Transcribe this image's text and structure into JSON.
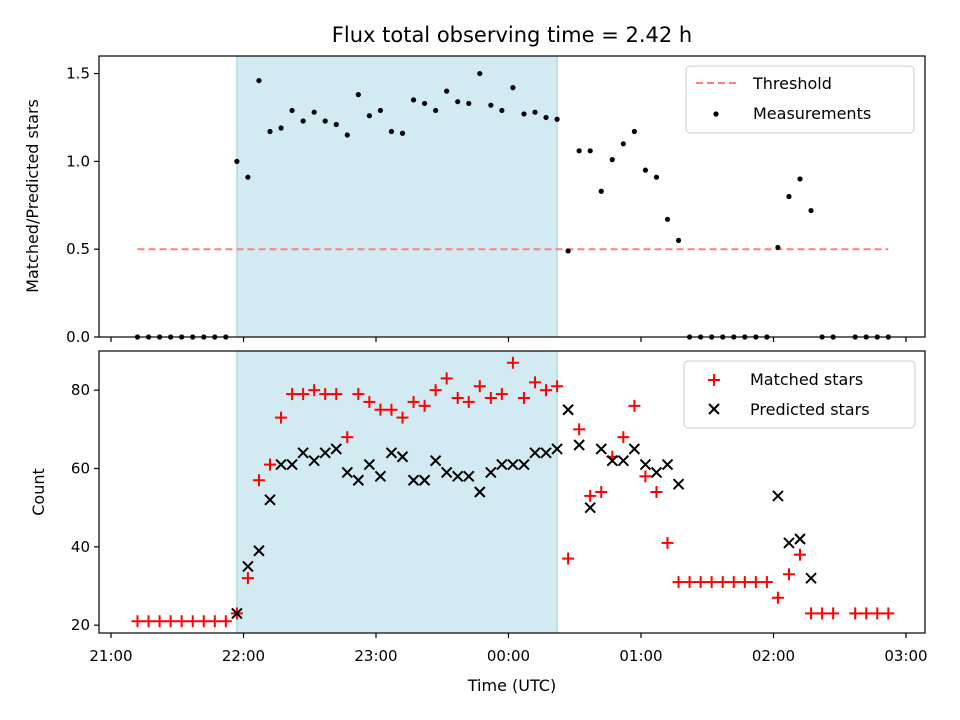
{
  "chart_data": [
    {
      "type": "scatter",
      "title": "Flux total observing time = 2.42 h",
      "xlabel": "",
      "ylabel": "Matched/Predicted stars",
      "xlim": [
        "21:00",
        "03:00"
      ],
      "ylim": [
        0,
        1.6
      ],
      "yticks": [
        "0.0",
        "0.5",
        "1.0",
        "1.5"
      ],
      "highlight_span": [
        "21:57",
        "00:22"
      ],
      "legend_position": "upper right",
      "legend": [
        "Threshold",
        "Measurements"
      ],
      "threshold": {
        "name": "Threshold",
        "value": 0.5,
        "x_range": [
          "21:12",
          "02:52"
        ],
        "color": "#ff7f7f"
      },
      "series": [
        {
          "name": "Measurements",
          "color": "#000000",
          "points": [
            [
              "21:12",
              0
            ],
            [
              "21:17",
              0
            ],
            [
              "21:22",
              0
            ],
            [
              "21:27",
              0
            ],
            [
              "21:32",
              0
            ],
            [
              "21:37",
              0
            ],
            [
              "21:42",
              0
            ],
            [
              "21:47",
              0
            ],
            [
              "21:52",
              0
            ],
            [
              "21:57",
              1.0
            ],
            [
              "22:02",
              0.91
            ],
            [
              "22:07",
              1.46
            ],
            [
              "22:12",
              1.17
            ],
            [
              "22:17",
              1.19
            ],
            [
              "22:22",
              1.29
            ],
            [
              "22:27",
              1.23
            ],
            [
              "22:32",
              1.28
            ],
            [
              "22:37",
              1.23
            ],
            [
              "22:42",
              1.21
            ],
            [
              "22:47",
              1.15
            ],
            [
              "22:52",
              1.38
            ],
            [
              "22:57",
              1.26
            ],
            [
              "23:02",
              1.29
            ],
            [
              "23:07",
              1.17
            ],
            [
              "23:12",
              1.16
            ],
            [
              "23:17",
              1.35
            ],
            [
              "23:22",
              1.33
            ],
            [
              "23:27",
              1.29
            ],
            [
              "23:32",
              1.4
            ],
            [
              "23:37",
              1.34
            ],
            [
              "23:42",
              1.33
            ],
            [
              "23:47",
              1.5
            ],
            [
              "23:52",
              1.32
            ],
            [
              "23:57",
              1.29
            ],
            [
              "00:02",
              1.42
            ],
            [
              "00:07",
              1.27
            ],
            [
              "00:12",
              1.28
            ],
            [
              "00:17",
              1.25
            ],
            [
              "00:22",
              1.24
            ],
            [
              "00:27",
              0.49
            ],
            [
              "00:32",
              1.06
            ],
            [
              "00:37",
              1.06
            ],
            [
              "00:42",
              0.83
            ],
            [
              "00:47",
              1.01
            ],
            [
              "00:52",
              1.1
            ],
            [
              "00:57",
              1.17
            ],
            [
              "01:02",
              0.95
            ],
            [
              "01:07",
              0.91
            ],
            [
              "01:12",
              0.67
            ],
            [
              "01:17",
              0.55
            ],
            [
              "01:22",
              0
            ],
            [
              "01:27",
              0
            ],
            [
              "01:32",
              0
            ],
            [
              "01:37",
              0
            ],
            [
              "01:42",
              0
            ],
            [
              "01:47",
              0
            ],
            [
              "01:52",
              0
            ],
            [
              "01:57",
              0
            ],
            [
              "02:02",
              0.51
            ],
            [
              "02:07",
              0.8
            ],
            [
              "02:12",
              0.9
            ],
            [
              "02:17",
              0.72
            ],
            [
              "02:22",
              0
            ],
            [
              "02:27",
              0
            ],
            [
              "02:37",
              0
            ],
            [
              "02:42",
              0
            ],
            [
              "02:47",
              0
            ],
            [
              "02:52",
              0
            ]
          ]
        }
      ]
    },
    {
      "type": "scatter",
      "title": "",
      "xlabel": "Time (UTC)",
      "ylabel": "Count",
      "xlim": [
        "21:00",
        "03:00"
      ],
      "ylim": [
        18,
        90
      ],
      "xticks": [
        "21:00",
        "22:00",
        "23:00",
        "00:00",
        "01:00",
        "02:00",
        "03:00"
      ],
      "yticks": [
        "20",
        "40",
        "60",
        "80"
      ],
      "highlight_span": [
        "21:57",
        "00:22"
      ],
      "legend_position": "upper right",
      "legend": [
        "Matched stars",
        "Predicted stars"
      ],
      "series": [
        {
          "name": "Matched stars",
          "marker": "plus",
          "color": "#ff0000",
          "points": [
            [
              "21:12",
              21
            ],
            [
              "21:17",
              21
            ],
            [
              "21:22",
              21
            ],
            [
              "21:27",
              21
            ],
            [
              "21:32",
              21
            ],
            [
              "21:37",
              21
            ],
            [
              "21:42",
              21
            ],
            [
              "21:47",
              21
            ],
            [
              "21:52",
              21
            ],
            [
              "21:57",
              23
            ],
            [
              "22:02",
              32
            ],
            [
              "22:07",
              57
            ],
            [
              "22:12",
              61
            ],
            [
              "22:17",
              73
            ],
            [
              "22:22",
              79
            ],
            [
              "22:27",
              79
            ],
            [
              "22:32",
              80
            ],
            [
              "22:37",
              79
            ],
            [
              "22:42",
              79
            ],
            [
              "22:47",
              68
            ],
            [
              "22:52",
              79
            ],
            [
              "22:57",
              77
            ],
            [
              "23:02",
              75
            ],
            [
              "23:07",
              75
            ],
            [
              "23:12",
              73
            ],
            [
              "23:17",
              77
            ],
            [
              "23:22",
              76
            ],
            [
              "23:27",
              80
            ],
            [
              "23:32",
              83
            ],
            [
              "23:37",
              78
            ],
            [
              "23:42",
              77
            ],
            [
              "23:47",
              81
            ],
            [
              "23:52",
              78
            ],
            [
              "23:57",
              79
            ],
            [
              "00:02",
              87
            ],
            [
              "00:07",
              78
            ],
            [
              "00:12",
              82
            ],
            [
              "00:17",
              80
            ],
            [
              "00:22",
              81
            ],
            [
              "00:27",
              37
            ],
            [
              "00:32",
              70
            ],
            [
              "00:37",
              53
            ],
            [
              "00:42",
              54
            ],
            [
              "00:47",
              63
            ],
            [
              "00:52",
              68
            ],
            [
              "00:57",
              76
            ],
            [
              "01:02",
              58
            ],
            [
              "01:07",
              54
            ],
            [
              "01:12",
              41
            ],
            [
              "01:17",
              31
            ],
            [
              "01:22",
              31
            ],
            [
              "01:27",
              31
            ],
            [
              "01:32",
              31
            ],
            [
              "01:37",
              31
            ],
            [
              "01:42",
              31
            ],
            [
              "01:47",
              31
            ],
            [
              "01:52",
              31
            ],
            [
              "01:57",
              31
            ],
            [
              "02:02",
              27
            ],
            [
              "02:07",
              33
            ],
            [
              "02:12",
              38
            ],
            [
              "02:17",
              23
            ],
            [
              "02:22",
              23
            ],
            [
              "02:27",
              23
            ],
            [
              "02:37",
              23
            ],
            [
              "02:42",
              23
            ],
            [
              "02:47",
              23
            ],
            [
              "02:52",
              23
            ]
          ]
        },
        {
          "name": "Predicted stars",
          "marker": "x",
          "color": "#000000",
          "points": [
            [
              "21:57",
              23
            ],
            [
              "22:02",
              35
            ],
            [
              "22:07",
              39
            ],
            [
              "22:12",
              52
            ],
            [
              "22:17",
              61
            ],
            [
              "22:22",
              61
            ],
            [
              "22:27",
              64
            ],
            [
              "22:32",
              62
            ],
            [
              "22:37",
              64
            ],
            [
              "22:42",
              65
            ],
            [
              "22:47",
              59
            ],
            [
              "22:52",
              57
            ],
            [
              "22:57",
              61
            ],
            [
              "23:02",
              58
            ],
            [
              "23:07",
              64
            ],
            [
              "23:12",
              63
            ],
            [
              "23:17",
              57
            ],
            [
              "23:22",
              57
            ],
            [
              "23:27",
              62
            ],
            [
              "23:32",
              59
            ],
            [
              "23:37",
              58
            ],
            [
              "23:42",
              58
            ],
            [
              "23:47",
              54
            ],
            [
              "23:52",
              59
            ],
            [
              "23:57",
              61
            ],
            [
              "00:02",
              61
            ],
            [
              "00:07",
              61
            ],
            [
              "00:12",
              64
            ],
            [
              "00:17",
              64
            ],
            [
              "00:22",
              65
            ],
            [
              "00:27",
              75
            ],
            [
              "00:32",
              66
            ],
            [
              "00:37",
              50
            ],
            [
              "00:42",
              65
            ],
            [
              "00:47",
              62
            ],
            [
              "00:52",
              62
            ],
            [
              "00:57",
              65
            ],
            [
              "01:02",
              61
            ],
            [
              "01:07",
              59
            ],
            [
              "01:12",
              61
            ],
            [
              "01:17",
              56
            ],
            [
              "02:02",
              53
            ],
            [
              "02:07",
              41
            ],
            [
              "02:12",
              42
            ],
            [
              "02:17",
              32
            ]
          ]
        }
      ]
    }
  ]
}
